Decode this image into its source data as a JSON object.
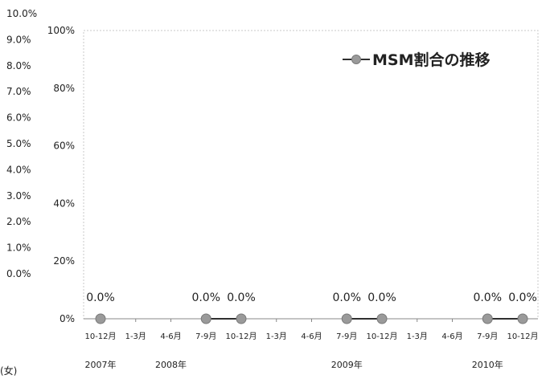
{
  "secondary_axis": {
    "tick_labels": [
      "0.0%",
      "1.0%",
      "2.0%",
      "3.0%",
      "4.0%",
      "5.0%",
      "6.0%",
      "7.0%",
      "8.0%",
      "9.0%",
      "10.0%"
    ]
  },
  "fragment_label": "(女)",
  "colors": {
    "series_line": "#2f2f2f",
    "marker_fill": "#9a9a9a",
    "marker_stroke": "#7a7a7a",
    "axis": "#888888",
    "plot_border": "#c8c8c8"
  },
  "chart_data": {
    "type": "line",
    "title": "",
    "xlabel": "",
    "ylabel": "",
    "ylim": [
      0,
      100
    ],
    "y_tick_labels": [
      "0%",
      "20%",
      "40%",
      "60%",
      "80%",
      "100%"
    ],
    "categories": [
      "10-12月",
      "1-3月",
      "4-6月",
      "7-9月",
      "10-12月",
      "1-3月",
      "4-6月",
      "7-9月",
      "10-12月",
      "1-3月",
      "4-6月",
      "7-9月",
      "10-12月"
    ],
    "year_labels": [
      {
        "label": "2007年",
        "category_index": 0
      },
      {
        "label": "2008年",
        "category_index": 2
      },
      {
        "label": "2009年",
        "category_index": 7
      },
      {
        "label": "2010年",
        "category_index": 11
      }
    ],
    "legend": "top-right",
    "grid": false,
    "series": [
      {
        "name": "MSM割合の推移",
        "values": [
          0,
          null,
          null,
          0,
          0,
          null,
          null,
          0,
          0,
          null,
          null,
          0,
          0
        ],
        "data_labels": [
          "0.0%",
          null,
          null,
          "0.0%",
          "0.0%",
          null,
          null,
          "0.0%",
          "0.0%",
          null,
          null,
          "0.0%",
          "0.0%"
        ]
      }
    ]
  }
}
